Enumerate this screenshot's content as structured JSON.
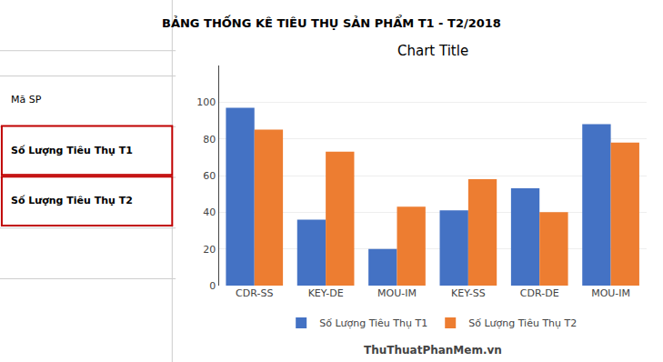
{
  "chart_data": {
    "type": "bar",
    "title": "BẢNG THỐNG KÊ TIÊU THỤ SẢN PHẨM T1 - T2/2018",
    "subtitle": "Chart Title",
    "categories": [
      "CDR-SS",
      "KEY-DE",
      "MOU-IM",
      "KEY-SS",
      "CDR-DE",
      "MOU-IM"
    ],
    "series": [
      {
        "name": "Số Lượng Tiêu Thụ T1",
        "color": "#4472C4",
        "values": [
          97,
          36,
          20,
          41,
          53,
          88
        ]
      },
      {
        "name": "Số Lượng Tiêu Thụ T2",
        "color": "#ED7D31",
        "values": [
          85,
          73,
          43,
          58,
          40,
          78
        ]
      }
    ],
    "ylim": [
      0,
      120
    ],
    "yticks": [
      0,
      20,
      40,
      60,
      80,
      100
    ],
    "grid": true,
    "legend": "bottom",
    "annotations": [
      "Mã SP",
      "Số Lượng Tiêu Thụ T1",
      "Số Lượng Tiêu Thụ T2",
      "ThuThuatPhanMem.vn"
    ]
  }
}
